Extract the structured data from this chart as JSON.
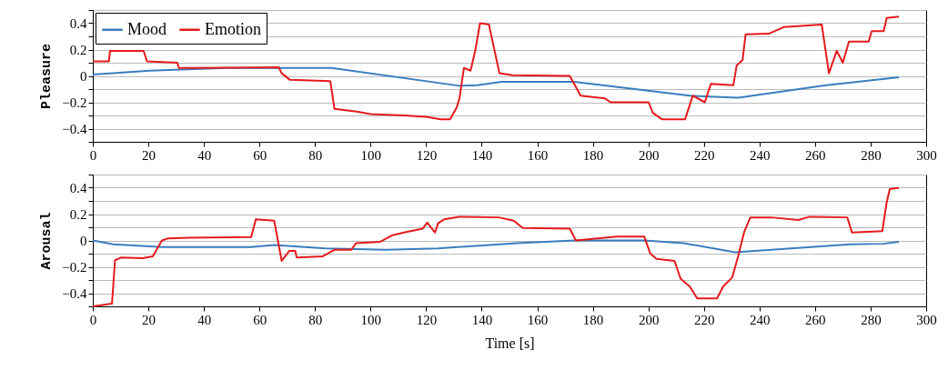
{
  "chart_data": [
    {
      "type": "line",
      "ylabel": "Pleasure",
      "xlim": [
        0,
        300
      ],
      "xticks": [
        0,
        20,
        40,
        60,
        80,
        100,
        120,
        140,
        160,
        180,
        200,
        220,
        240,
        260,
        280,
        300
      ],
      "ylim": [
        -0.5,
        0.5
      ],
      "yticks": [
        {
          "value": -0.5,
          "label": null
        },
        {
          "value": -0.4,
          "label": "−0.4"
        },
        {
          "value": -0.3,
          "label": null
        },
        {
          "value": -0.2,
          "label": "−0.2"
        },
        {
          "value": -0.1,
          "label": null
        },
        0,
        {
          "value": 0.1,
          "label": null
        },
        0.2,
        {
          "value": 0.3,
          "label": null
        },
        0.4,
        {
          "value": 0.5,
          "label": null
        }
      ],
      "grid": "y",
      "legend": "top left",
      "line_style": "solid",
      "marker": "none",
      "series": [
        {
          "name": "Mood",
          "color": "#3a7dbf",
          "x": [
            0,
            20.5,
            47.8,
            86,
            131.9,
            138.4,
            147.1,
            173.3,
            214.9,
            232.3,
            264,
            290.2
          ],
          "values": [
            0.01,
            0.04,
            0.06,
            0.06,
            -0.075,
            -0.07,
            -0.045,
            -0.045,
            -0.15,
            -0.165,
            -0.07,
            -0.01
          ]
        },
        {
          "name": "Emotion",
          "color": "#e41a1c",
          "x": [
            0,
            5.8,
            6.2,
            18.3,
            19.5,
            30.4,
            31,
            66.9,
            68,
            71,
            85.5,
            87,
            95,
            100,
            112,
            120,
            125.3,
            128.6,
            131,
            132,
            133.6,
            136,
            137.7,
            139.4,
            142.6,
            146.4,
            151,
            171.7,
            175.6,
            184.3,
            186.4,
            200.1,
            201.6,
            205,
            213.2,
            214.9,
            216,
            220.3,
            222.5,
            230.6,
            231.8,
            233.9,
            235,
            243.3,
            248.7,
            262.4,
            265,
            267.8,
            270,
            272.2,
            279.3,
            280.4,
            284.7,
            285.8,
            290.2
          ],
          "values": [
            0.11,
            0.11,
            0.19,
            0.19,
            0.11,
            0.1,
            0.06,
            0.065,
            0.02,
            -0.03,
            -0.04,
            -0.25,
            -0.27,
            -0.29,
            -0.3,
            -0.31,
            -0.33,
            -0.33,
            -0.24,
            -0.17,
            0.06,
            0.04,
            0.195,
            0.4,
            0.39,
            0.02,
            0.005,
            0.0,
            -0.15,
            -0.17,
            -0.2,
            -0.2,
            -0.28,
            -0.33,
            -0.33,
            -0.22,
            -0.15,
            -0.2,
            -0.06,
            -0.07,
            0.08,
            0.12,
            0.315,
            0.32,
            0.37,
            0.39,
            0.02,
            0.19,
            0.1,
            0.26,
            0.26,
            0.34,
            0.34,
            0.44,
            0.45
          ]
        }
      ]
    },
    {
      "type": "line",
      "ylabel": "Arousal",
      "xlabel": "Time [s]",
      "xlim": [
        0,
        300
      ],
      "xticks": [
        0,
        20,
        40,
        60,
        80,
        100,
        120,
        140,
        160,
        180,
        200,
        220,
        240,
        260,
        280,
        300
      ],
      "ylim": [
        -0.5,
        0.5
      ],
      "yticks": [
        {
          "value": -0.5,
          "label": null
        },
        {
          "value": -0.4,
          "label": "−0.4"
        },
        {
          "value": -0.3,
          "label": null
        },
        {
          "value": -0.2,
          "label": "−0.2"
        },
        {
          "value": -0.1,
          "label": null
        },
        0,
        {
          "value": 0.1,
          "label": null
        },
        0.2,
        {
          "value": 0.3,
          "label": null
        },
        0.4,
        {
          "value": 0.5,
          "label": null
        }
      ],
      "grid": "y",
      "line_style": "solid",
      "marker": "none",
      "series": [
        {
          "color": "#3a7dbf",
          "x": [
            0,
            7.4,
            24.9,
            57,
            65.3,
            83.8,
            105.7,
            124.3,
            152.6,
            173.4,
            198.5,
            212.7,
            231.2,
            258.5,
            272.7,
            284.7,
            290.2
          ],
          "values": [
            0.0,
            -0.03,
            -0.05,
            -0.05,
            -0.035,
            -0.06,
            -0.07,
            -0.06,
            -0.02,
            0.0,
            0.0,
            -0.02,
            -0.09,
            -0.05,
            -0.03,
            -0.025,
            -0.01
          ]
        },
        {
          "color": "#e41a1c",
          "x": [
            0,
            6.9,
            8,
            10.2,
            17.9,
            21.6,
            24.9,
            27,
            34.9,
            57,
            58.7,
            65.3,
            68,
            70.7,
            72.9,
            73.4,
            82.8,
            87.1,
            93.1,
            94.8,
            103.5,
            107.9,
            112,
            118.8,
            120.4,
            123.2,
            124.3,
            126.4,
            131.9,
            146.1,
            151.5,
            154.8,
            171.7,
            173.9,
            184.3,
            188.7,
            198.5,
            200.7,
            202.9,
            209.4,
            211.6,
            214.9,
            217.6,
            224.7,
            226.9,
            230.2,
            232.3,
            234.5,
            236.7,
            244.3,
            254,
            258,
            271.6,
            273.3,
            284.2,
            285.8,
            286.9,
            290.2
          ],
          "values": [
            -0.5,
            -0.48,
            -0.15,
            -0.13,
            -0.135,
            -0.12,
            0.0,
            0.015,
            0.02,
            0.025,
            0.16,
            0.15,
            -0.155,
            -0.08,
            -0.08,
            -0.13,
            -0.12,
            -0.07,
            -0.07,
            -0.02,
            -0.01,
            0.04,
            0.06,
            0.09,
            0.135,
            0.06,
            0.13,
            0.16,
            0.18,
            0.175,
            0.15,
            0.095,
            0.09,
            0.0,
            0.02,
            0.03,
            0.03,
            -0.1,
            -0.14,
            -0.155,
            -0.29,
            -0.35,
            -0.44,
            -0.44,
            -0.35,
            -0.28,
            -0.12,
            0.065,
            0.175,
            0.175,
            0.155,
            0.18,
            0.175,
            0.06,
            0.07,
            0.29,
            0.39,
            0.4
          ]
        }
      ]
    }
  ]
}
